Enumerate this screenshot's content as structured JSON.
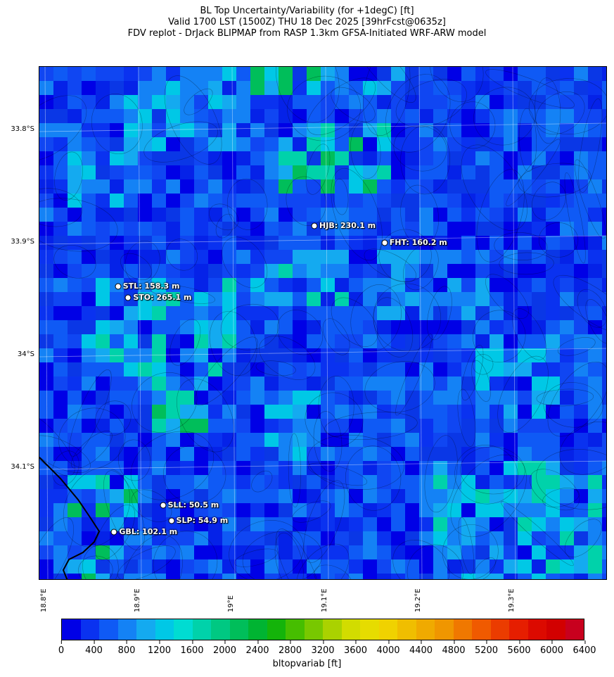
{
  "titles": {
    "line1": "BL Top Uncertainty/Variability (for +1degC) [ft]",
    "line2": "Valid 1700 LST (1500Z) THU 18 Dec 2025 [39hrFcst@0635z]",
    "line3": "FDV replot - DrJack BLIPMAP from RASP 1.3km GFSA-Initiated WRF-ARW model"
  },
  "axes": {
    "lat_labels": [
      "33.8°S",
      "33.9°S",
      "34°S",
      "34.1°S"
    ],
    "lat_values": [
      -33.8,
      -33.9,
      -34.0,
      -34.1
    ],
    "lon_labels": [
      "18.8°E",
      "18.9°E",
      "19°E",
      "19.1°E",
      "19.2°E",
      "19.3°E"
    ],
    "lon_values": [
      18.8,
      18.9,
      19.0,
      19.1,
      19.2,
      19.3
    ],
    "lon_range": [
      18.8,
      19.41
    ],
    "lat_range": [
      -34.2,
      -33.745
    ]
  },
  "sites": [
    {
      "name": "HJB: 230.1 m",
      "lon": 19.088,
      "lat": -33.885
    },
    {
      "name": "FHT: 160.2 m",
      "lon": 19.163,
      "lat": -33.9
    },
    {
      "name": "STL: 158.3 m",
      "lon": 18.878,
      "lat": -33.939
    },
    {
      "name": "STO: 265.1 m",
      "lon": 18.889,
      "lat": -33.949
    },
    {
      "name": "SLL: 50.5 m",
      "lon": 18.926,
      "lat": -34.133
    },
    {
      "name": "SLP: 54.9 m",
      "lon": 18.935,
      "lat": -34.147
    },
    {
      "name": "GBL: 102.1 m",
      "lon": 18.874,
      "lat": -34.157
    }
  ],
  "colorbar": {
    "label": "bltopvariab [ft]",
    "tick_labels": [
      "0",
      "400",
      "800",
      "1200",
      "1600",
      "2000",
      "2400",
      "2800",
      "3200",
      "3600",
      "4000",
      "4400",
      "4800",
      "5200",
      "5600",
      "6000",
      "6400"
    ],
    "min": 0,
    "max": 6400,
    "colors": [
      "#0000e6",
      "#0a32f0",
      "#0f5af5",
      "#1482f5",
      "#14aaf0",
      "#00c8e6",
      "#00dcd2",
      "#00d2aa",
      "#00c882",
      "#00be5a",
      "#00b432",
      "#14b40a",
      "#46be00",
      "#78c800",
      "#aad200",
      "#d2dc00",
      "#e6dc00",
      "#f0d200",
      "#f0be00",
      "#f0aa00",
      "#f09600",
      "#f07800",
      "#f05a00",
      "#eb3c00",
      "#e61e00",
      "#dc0a00",
      "#d20000",
      "#c8001e"
    ]
  },
  "field": {
    "base_color": "#0a37e6",
    "high_colors": [
      "#00d2aa",
      "#00be5a",
      "#00c8e6",
      "#14aaf0",
      "#1482f5"
    ],
    "coast_color": "#000000"
  }
}
